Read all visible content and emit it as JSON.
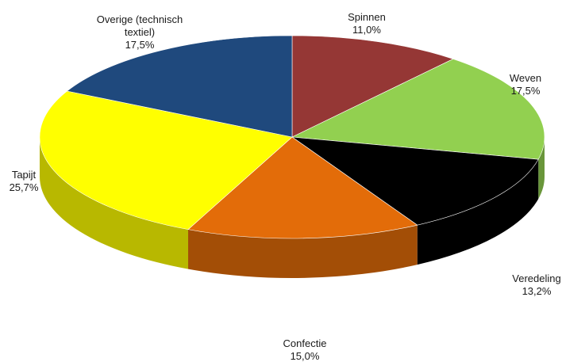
{
  "chart_data": {
    "type": "pie",
    "title": "",
    "slices": [
      {
        "name": "Spinnen",
        "value_label": "11,0%",
        "value": 11.0,
        "color": "#953735"
      },
      {
        "name": "Weven",
        "value_label": "17,5%",
        "value": 17.5,
        "color": "#92D050"
      },
      {
        "name": "Veredeling",
        "value_label": "13,2%",
        "value": 13.2,
        "color": "#000000"
      },
      {
        "name": "Confectie",
        "value_label": "15,0%",
        "value": 15.0,
        "color": "#E36C09"
      },
      {
        "name": "Tapijt",
        "value_label": "25,7%",
        "value": 25.7,
        "color": "#FFFF00"
      },
      {
        "name": "Overige (technisch textiel)",
        "value_label": "17,5%",
        "value": 17.5,
        "color": "#1F497D"
      }
    ]
  }
}
